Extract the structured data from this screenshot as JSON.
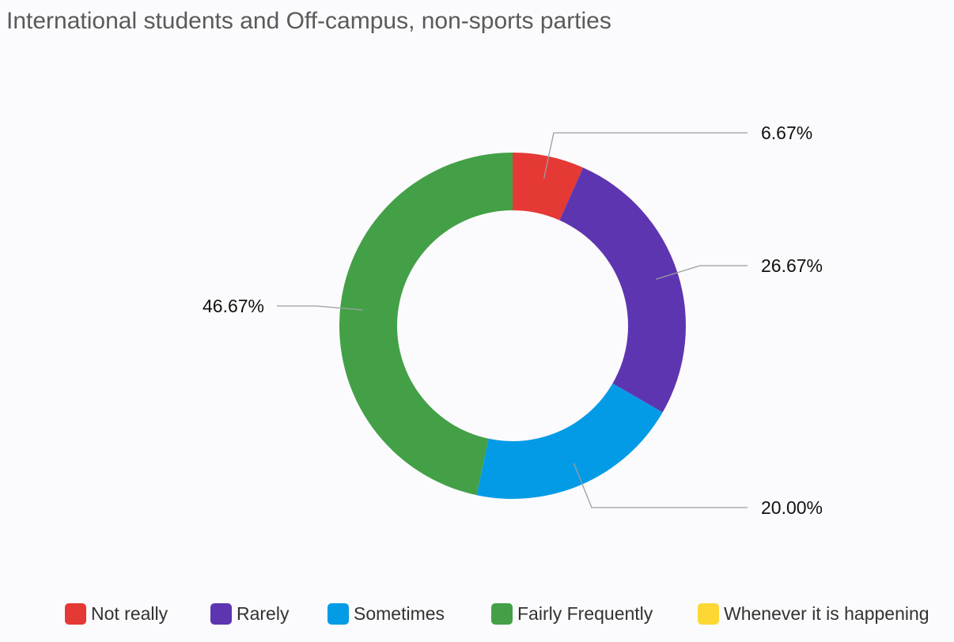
{
  "chart_data": {
    "type": "pie",
    "variant": "donut",
    "title": "International students and Off-campus, non-sports parties",
    "categories": [
      "Not really",
      "Rarely",
      "Sometimes",
      "Fairly Frequently",
      "Whenever it is happening"
    ],
    "values": [
      6.67,
      26.67,
      20.0,
      46.67,
      0
    ],
    "labels": [
      "6.67%",
      "26.67%",
      "20.00%",
      "46.67%",
      ""
    ],
    "colors": [
      "#e53935",
      "#5e35b1",
      "#039be5",
      "#43a047",
      "#fdd835"
    ],
    "legend": "bottom"
  }
}
